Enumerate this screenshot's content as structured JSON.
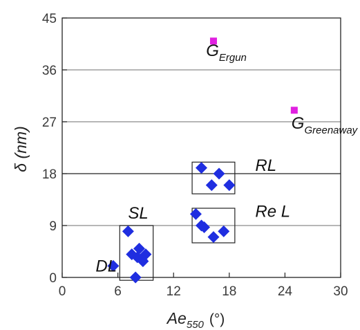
{
  "chart_data": {
    "type": "scatter",
    "title": "",
    "xlabel": {
      "main": "Ae",
      "sub": "550",
      "unit": "(°)"
    },
    "ylabel": {
      "main": "δ",
      "unit": "(nm)"
    },
    "xlim": [
      0,
      30
    ],
    "ylim": [
      0,
      45
    ],
    "xticks": [
      0,
      6,
      12,
      18,
      24,
      30
    ],
    "yticks": [
      0,
      9,
      18,
      27,
      36,
      45
    ],
    "grid": {
      "horizontal": true,
      "vertical": false
    },
    "series": [
      {
        "marker": "diamond",
        "color": "#1f2ee0",
        "points": [
          [
            5.5,
            2
          ],
          [
            7.1,
            8
          ],
          [
            7.9,
            0
          ],
          [
            7.5,
            4
          ],
          [
            8.3,
            5
          ],
          [
            8.6,
            3
          ],
          [
            9.0,
            4
          ],
          [
            8.1,
            3.5
          ],
          [
            8.7,
            2.8
          ],
          [
            14.4,
            11
          ],
          [
            15.0,
            9
          ],
          [
            15.3,
            8.7
          ],
          [
            16.3,
            7
          ],
          [
            17.4,
            8
          ],
          [
            15.0,
            19
          ],
          [
            16.1,
            16
          ],
          [
            16.9,
            18
          ],
          [
            18.0,
            16
          ]
        ]
      },
      {
        "marker": "square",
        "color": "#e020e0",
        "points": [
          [
            16.3,
            41
          ],
          [
            25.0,
            29
          ]
        ]
      }
    ],
    "boxes": [
      {
        "x": [
          6.2,
          9.8
        ],
        "y": [
          -0.5,
          9
        ]
      },
      {
        "x": [
          14.0,
          18.6
        ],
        "y": [
          6,
          12
        ]
      },
      {
        "x": [
          14.0,
          18.6
        ],
        "y": [
          14.5,
          20
        ]
      }
    ],
    "annotations": [
      {
        "text": "DL",
        "sub": "",
        "x": 3.6,
        "y": 1.0
      },
      {
        "text": "SL",
        "sub": "",
        "x": 7.1,
        "y": 10.2
      },
      {
        "text": "Re L",
        "sub": "",
        "x": 20.8,
        "y": 10.5
      },
      {
        "text": "RL",
        "sub": "",
        "x": 20.8,
        "y": 18.5
      },
      {
        "text": "G",
        "sub": "Ergun",
        "x": 15.5,
        "y": 38.4
      },
      {
        "text": "G",
        "sub": "Greenaway",
        "x": 24.7,
        "y": 25.8
      }
    ]
  }
}
